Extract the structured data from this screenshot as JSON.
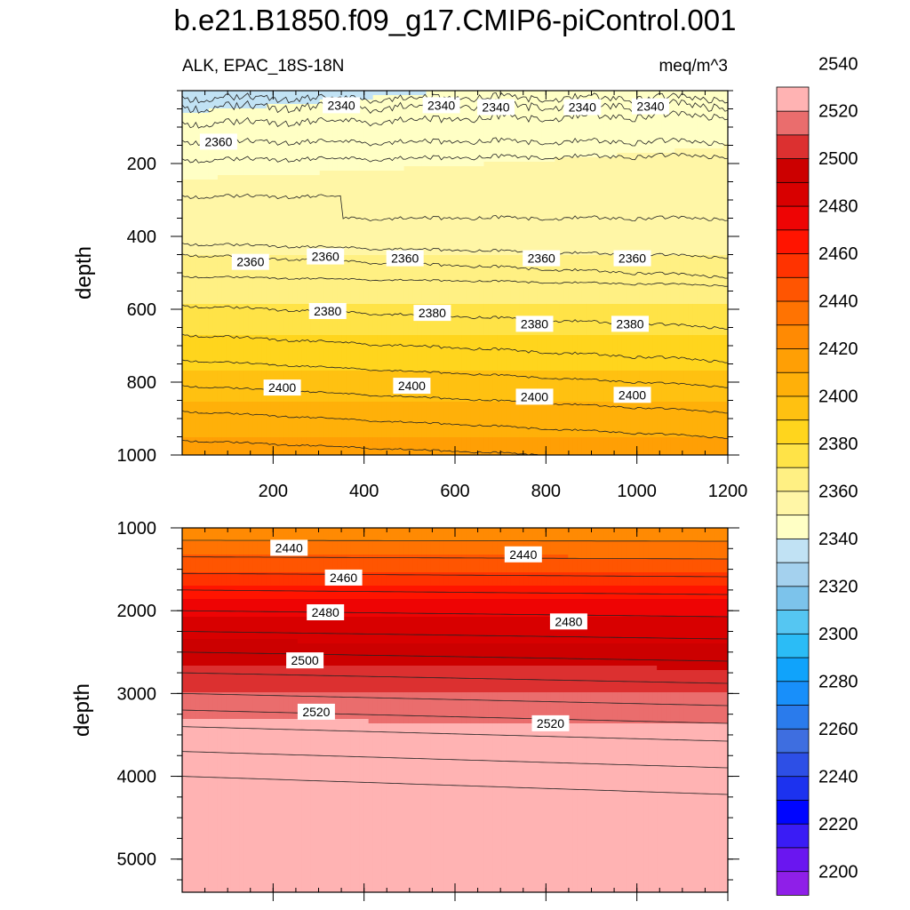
{
  "title": "b.e21.B1850.f09_g17.CMIP6-piControl.001",
  "chart_data": {
    "type": "contour",
    "variable": "ALK",
    "region": "EPAC_18S-18N",
    "subtitle_left": "ALK, EPAC_18S-18N",
    "subtitle_right": "meq/m^3",
    "xlabel": "",
    "ylabel": "depth",
    "x_range": [
      0,
      1200
    ],
    "x_ticks": [
      "200",
      "400",
      "600",
      "800",
      "1000",
      "1200"
    ],
    "panels": [
      {
        "name": "upper",
        "ylim": [
          0,
          1000
        ],
        "y_ticks": [
          "200",
          "400",
          "600",
          "800",
          "1000"
        ],
        "ylabel": "depth",
        "contour_labels": [
          {
            "text": "2340",
            "x": 350,
            "y": 40
          },
          {
            "text": "2340",
            "x": 570,
            "y": 40
          },
          {
            "text": "2340",
            "x": 690,
            "y": 45
          },
          {
            "text": "2340",
            "x": 880,
            "y": 45
          },
          {
            "text": "2340",
            "x": 1030,
            "y": 43
          },
          {
            "text": "2360",
            "x": 80,
            "y": 140
          },
          {
            "text": "2360",
            "x": 150,
            "y": 470
          },
          {
            "text": "2360",
            "x": 315,
            "y": 455
          },
          {
            "text": "2360",
            "x": 490,
            "y": 460
          },
          {
            "text": "2360",
            "x": 790,
            "y": 460
          },
          {
            "text": "2360",
            "x": 990,
            "y": 460
          },
          {
            "text": "2380",
            "x": 320,
            "y": 605
          },
          {
            "text": "2380",
            "x": 550,
            "y": 610
          },
          {
            "text": "2380",
            "x": 775,
            "y": 640
          },
          {
            "text": "2380",
            "x": 985,
            "y": 640
          },
          {
            "text": "2400",
            "x": 220,
            "y": 815
          },
          {
            "text": "2400",
            "x": 505,
            "y": 810
          },
          {
            "text": "2400",
            "x": 775,
            "y": 840
          },
          {
            "text": "2400",
            "x": 990,
            "y": 835
          }
        ]
      },
      {
        "name": "lower",
        "ylim": [
          1000,
          5400
        ],
        "y_ticks": [
          "1000",
          "2000",
          "3000",
          "4000",
          "5000"
        ],
        "ylabel": "depth",
        "contour_labels": [
          {
            "text": "2440",
            "x": 235,
            "y": 1240
          },
          {
            "text": "2440",
            "x": 750,
            "y": 1320
          },
          {
            "text": "2460",
            "x": 355,
            "y": 1600
          },
          {
            "text": "2480",
            "x": 315,
            "y": 2020
          },
          {
            "text": "2480",
            "x": 850,
            "y": 2130
          },
          {
            "text": "2500",
            "x": 270,
            "y": 2600
          },
          {
            "text": "2520",
            "x": 295,
            "y": 3220
          },
          {
            "text": "2520",
            "x": 810,
            "y": 3360
          }
        ]
      }
    ],
    "colorbar": {
      "levels": [
        2200,
        2220,
        2240,
        2260,
        2280,
        2300,
        2320,
        2340,
        2360,
        2380,
        2400,
        2420,
        2440,
        2460,
        2480,
        2500,
        2520,
        2540
      ],
      "level_step": 10,
      "labels": [
        "2200",
        "2220",
        "2240",
        "2260",
        "2280",
        "2300",
        "2320",
        "2340",
        "2360",
        "2380",
        "2400",
        "2420",
        "2440",
        "2460",
        "2480",
        "2500",
        "2520",
        "2540"
      ],
      "colors": [
        "#8f1fe8",
        "#6a16f0",
        "#3a1cf5",
        "#0005ff",
        "#1c32ef",
        "#2d4fe6",
        "#3e6ee0",
        "#2a7bec",
        "#188ffa",
        "#10a3fb",
        "#2bbcf6",
        "#55c6f2",
        "#7cc3eb",
        "#a4d1ee",
        "#c1e2f4",
        "#ffffc5",
        "#fff6a6",
        "#fff083",
        "#ffe347",
        "#ffd51d",
        "#ffc111",
        "#ffb009",
        "#ff9f05",
        "#ff8a03",
        "#ff7302",
        "#ff5501",
        "#ff3300",
        "#ff1400",
        "#ee0404",
        "#d80000",
        "#cc0000",
        "#dc3030",
        "#ea6d6d",
        "#ffb3b3"
      ]
    }
  }
}
